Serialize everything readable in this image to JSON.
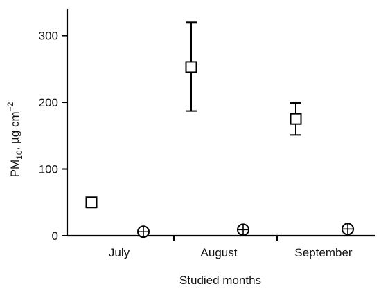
{
  "chart_data": {
    "type": "scatter",
    "xlabel": "Studied months",
    "ylabel": {
      "base": "PM",
      "subscript": "10",
      "middle": ", µg cm",
      "superscript": "−2"
    },
    "categories": [
      "July",
      "August",
      "September"
    ],
    "ylim": [
      0,
      340
    ],
    "yticks": [
      0,
      100,
      200,
      300
    ],
    "ytick_labels": [
      "0",
      "100",
      "200",
      "300"
    ],
    "grid": false,
    "series": [
      {
        "marker": "open-square",
        "points": [
          {
            "category": "July",
            "y": 50,
            "err_low": null,
            "err_high": null
          },
          {
            "category": "August",
            "y": 253,
            "err_low": 187,
            "err_high": 320
          },
          {
            "category": "September",
            "y": 175,
            "err_low": 151,
            "err_high": 199
          }
        ]
      },
      {
        "marker": "circle-plus",
        "points": [
          {
            "category": "July",
            "y": 6
          },
          {
            "category": "August",
            "y": 9
          },
          {
            "category": "September",
            "y": 10
          }
        ]
      }
    ]
  }
}
